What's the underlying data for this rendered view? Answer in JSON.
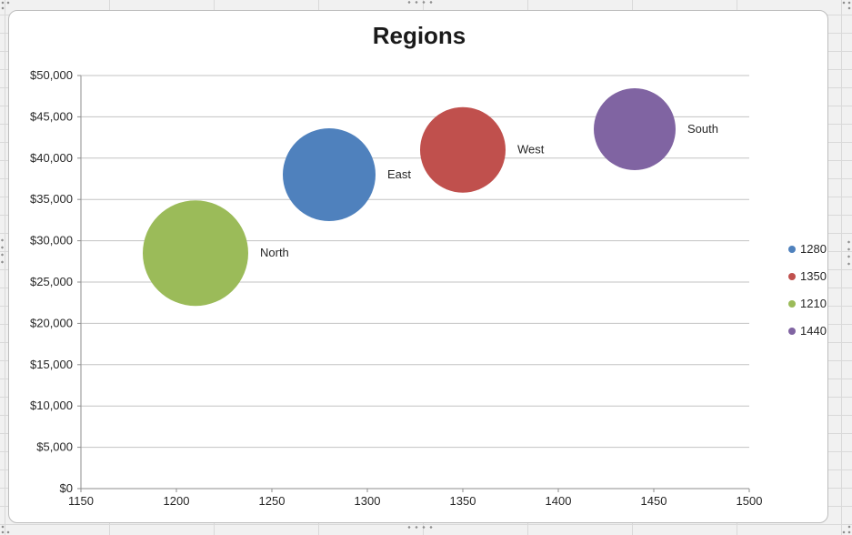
{
  "worksheet": {
    "background_color": "#f1f1f1",
    "gridline_color": "#d9d9d9"
  },
  "chart": {
    "background_color": "#ffffff",
    "border_color": "#bdbdbd",
    "plot_gridline_color": "#c3c3c3",
    "axis_line_color": "#8e8e8e",
    "text_color": "#262626"
  },
  "chart_data": {
    "type": "scatter",
    "subtype": "bubble",
    "title": "Regions",
    "grid": true,
    "legend_position": "right",
    "x_axis": {
      "min": 1150,
      "max": 1500,
      "step": 50,
      "tick_labels": [
        "1150",
        "1200",
        "1250",
        "1300",
        "1350",
        "1400",
        "1450",
        "1500"
      ]
    },
    "y_axis": {
      "min": 0,
      "max": 50000,
      "step": 5000,
      "tick_labels": [
        "$0",
        "$5,000",
        "$10,000",
        "$15,000",
        "$20,000",
        "$25,000",
        "$30,000",
        "$35,000",
        "$40,000",
        "$45,000",
        "$50,000"
      ]
    },
    "series": [
      {
        "name": "1280",
        "label": "East",
        "x": 1280,
        "y": 38000,
        "color": "#4f81bd",
        "radius_px": 51
      },
      {
        "name": "1350",
        "label": "West",
        "x": 1350,
        "y": 41000,
        "color": "#c0504d",
        "radius_px": 47
      },
      {
        "name": "1210",
        "label": "North",
        "x": 1210,
        "y": 28500,
        "color": "#9bbb59",
        "radius_px": 58
      },
      {
        "name": "1440",
        "label": "South",
        "x": 1440,
        "y": 43500,
        "color": "#8064a2",
        "radius_px": 45
      }
    ],
    "legend_entries": [
      "1280",
      "1350",
      "1210",
      "1440"
    ]
  }
}
